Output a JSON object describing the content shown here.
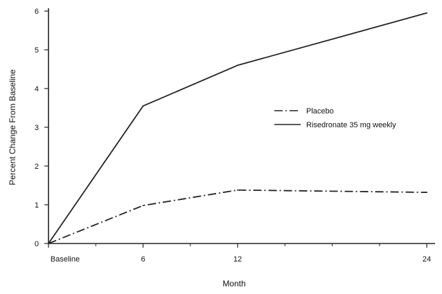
{
  "chart_data": {
    "type": "line",
    "title": "",
    "xlabel": "Month",
    "ylabel": "Percent Change From Baseline",
    "x": [
      0,
      6,
      12,
      24
    ],
    "x_tick_labels": [
      "Baseline",
      "6",
      "12",
      "24"
    ],
    "y_ticks": [
      0,
      1,
      2,
      3,
      4,
      5,
      6
    ],
    "ylim": [
      0,
      6
    ],
    "xlim": [
      0,
      24
    ],
    "grid": false,
    "legend_position": "right",
    "series": [
      {
        "name": "Placebo",
        "values": [
          0,
          0.98,
          1.38,
          1.32
        ],
        "style": "dash-dot",
        "color": "#222222"
      },
      {
        "name": "Risedronate 35 mg weekly",
        "values": [
          0,
          3.55,
          4.6,
          5.95
        ],
        "style": "solid",
        "color": "#222222"
      }
    ]
  }
}
